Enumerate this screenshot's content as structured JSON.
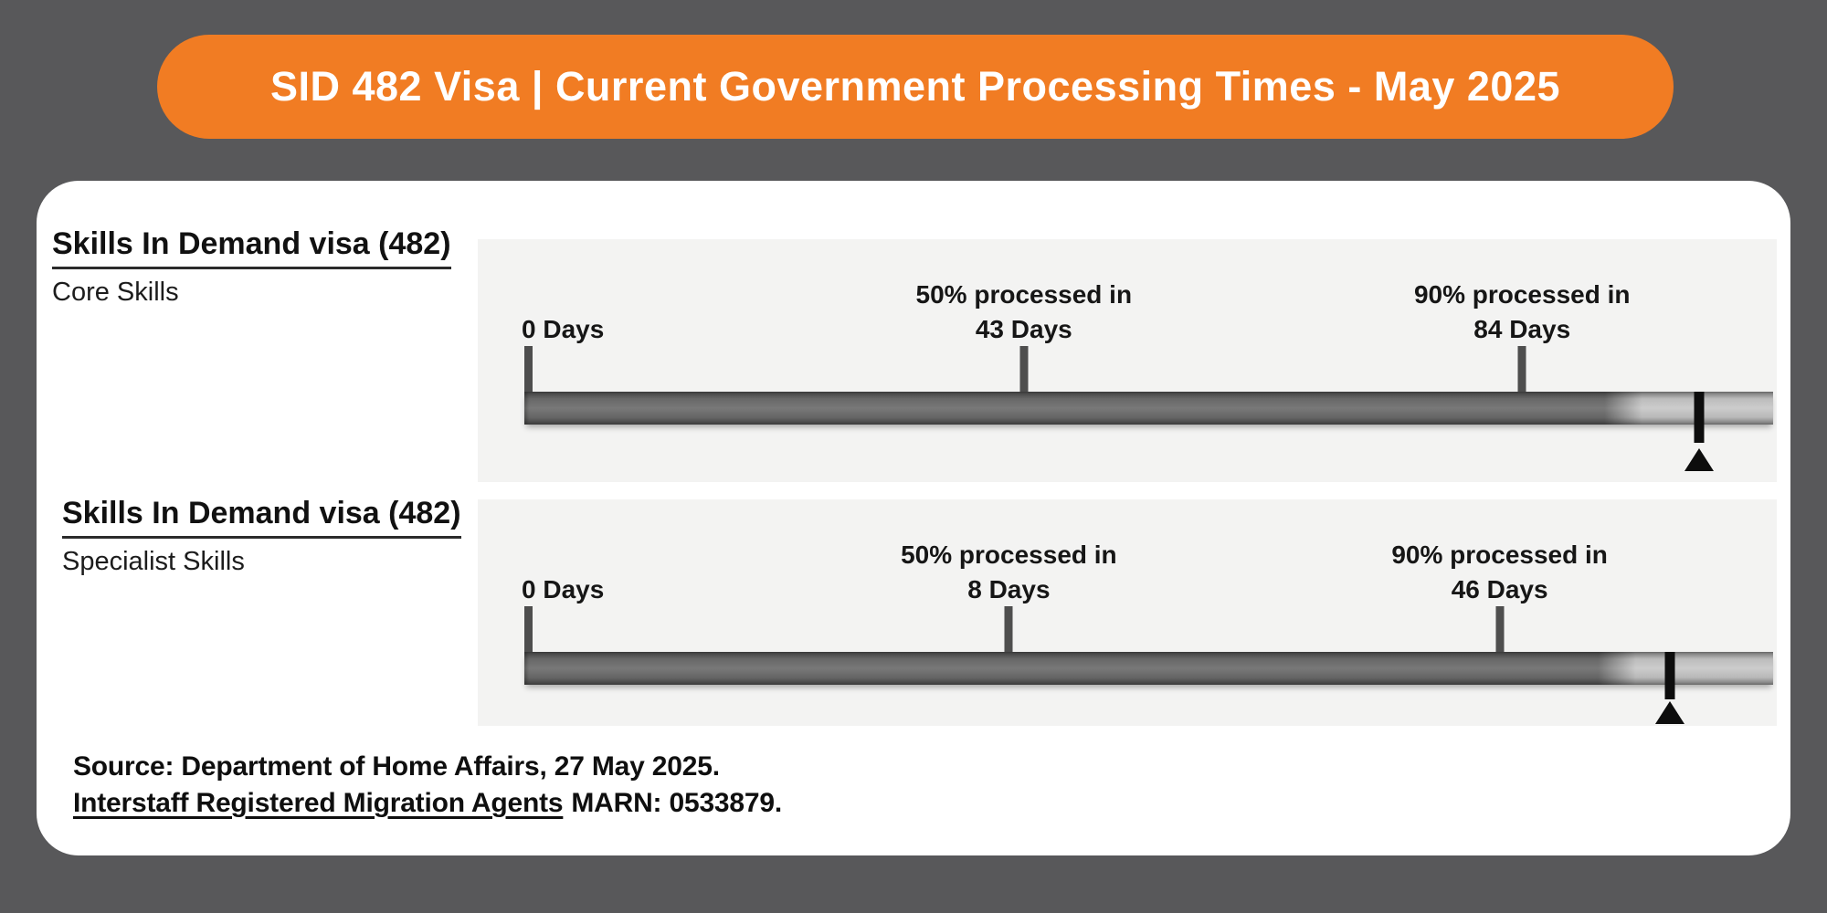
{
  "header": {
    "title": "SID 482 Visa | Current Government Processing Times - May 2025"
  },
  "colors": {
    "accent_orange": "#F17C23",
    "background_gray": "#58585A",
    "card_white": "#FFFFFF",
    "panel_gray": "#F3F3F2",
    "bar_dark": "#6E6E6E",
    "bar_light": "#C8C8C8",
    "tick_gray": "#4E4E4E",
    "marker_black": "#0D0D0D"
  },
  "timelines": [
    {
      "heading": "Skills In Demand visa (482)",
      "subheading": "Core Skills",
      "start_label": "0 Days",
      "p50_label": "50% processed in",
      "p50_value": "43 Days",
      "p90_label": "90% processed in",
      "p90_value": "84 Days"
    },
    {
      "heading": "Skills In Demand visa (482)",
      "subheading": "Specialist Skills",
      "start_label": "0 Days",
      "p50_label": "50% processed in",
      "p50_value": "8 Days",
      "p90_label": "90% processed in",
      "p90_value": "46 Days"
    }
  ],
  "footer": {
    "source": "Source: Department of Home Affairs, 27 May 2025.",
    "agent_name": "Interstaff Registered Migration Agents",
    "marn": "MARN: 0533879."
  },
  "chart_data": {
    "type": "bar",
    "unit": "days",
    "title": "SID 482 Visa | Current Government Processing Times - May 2025",
    "categories": [
      "0 Days",
      "50% processed in",
      "90% processed in"
    ],
    "series": [
      {
        "name": "Skills In Demand visa (482) - Core Skills",
        "p50_days": 43,
        "p90_days": 84
      },
      {
        "name": "Skills In Demand visa (482) - Specialist Skills",
        "p50_days": 8,
        "p90_days": 46
      }
    ],
    "source": "Department of Home Affairs, 27 May 2025",
    "legend_position": "none",
    "grid": false
  }
}
